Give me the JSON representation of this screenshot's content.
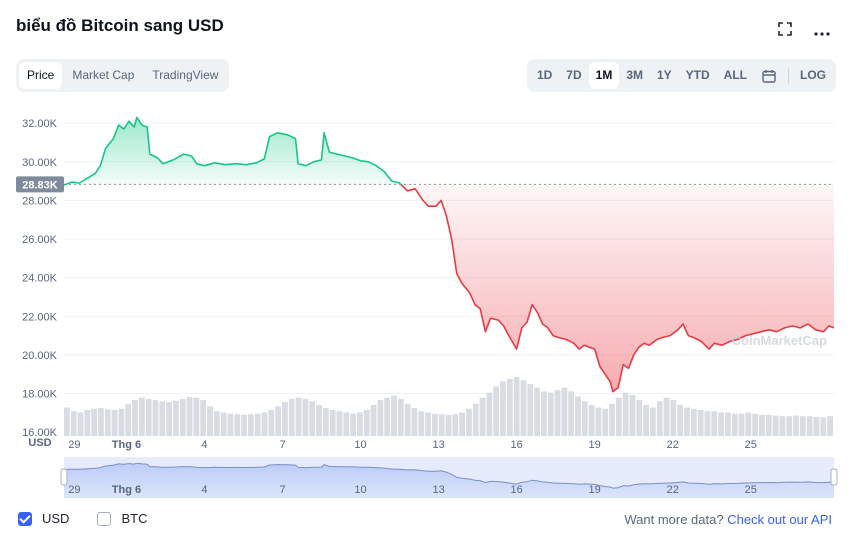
{
  "title": "biểu đồ Bitcoin sang USD",
  "icons": {
    "fullscreen": "fullscreen-icon",
    "more": "more-icon",
    "calendar": "calendar-icon"
  },
  "tabs": [
    {
      "label": "Price",
      "active": true
    },
    {
      "label": "Market Cap",
      "active": false
    },
    {
      "label": "TradingView",
      "active": false
    }
  ],
  "ranges": [
    {
      "label": "1D",
      "active": false
    },
    {
      "label": "7D",
      "active": false
    },
    {
      "label": "1M",
      "active": true
    },
    {
      "label": "3M",
      "active": false
    },
    {
      "label": "1Y",
      "active": false
    },
    {
      "label": "YTD",
      "active": false
    },
    {
      "label": "ALL",
      "active": false
    }
  ],
  "log_label": "LOG",
  "watermark": "CoinMarketCap",
  "currency_label": "USD",
  "legend": [
    {
      "label": "USD",
      "checked": true
    },
    {
      "label": "BTC",
      "checked": false
    }
  ],
  "api_text": "Want more data?",
  "api_link": "Check out our API",
  "colors": {
    "up": "#16c784",
    "down": "#ea3943",
    "accent": "#3861fb",
    "grid": "#eff2f5"
  },
  "chart_data": {
    "type": "area",
    "title": "",
    "xlabel": "",
    "ylabel": "",
    "ylim": [
      15800,
      33200
    ],
    "grid": true,
    "y_ticks": [
      "16.00K",
      "18.00K",
      "20.00K",
      "22.00K",
      "24.00K",
      "26.00K",
      "28.00K",
      "30.00K",
      "32.00K"
    ],
    "y_tick_values": [
      16000,
      18000,
      20000,
      22000,
      24000,
      26000,
      28000,
      30000,
      32000
    ],
    "reference_value": 28830,
    "reference_label": "28.83K",
    "x_ticks": [
      {
        "label": "29",
        "day": 0.4
      },
      {
        "label": "Thg 6",
        "day": 2.4
      },
      {
        "label": "4",
        "day": 5.4
      },
      {
        "label": "7",
        "day": 8.4
      },
      {
        "label": "10",
        "day": 11.4
      },
      {
        "label": "13",
        "day": 14.4
      },
      {
        "label": "16",
        "day": 17.4
      },
      {
        "label": "19",
        "day": 20.4
      },
      {
        "label": "22",
        "day": 23.4
      },
      {
        "label": "25",
        "day": 26.4
      }
    ],
    "series": [
      {
        "values": [
          [
            0.0,
            28800
          ],
          [
            0.3,
            28950
          ],
          [
            0.6,
            28900
          ],
          [
            0.9,
            29150
          ],
          [
            1.2,
            29400
          ],
          [
            1.4,
            29800
          ],
          [
            1.6,
            30700
          ],
          [
            1.9,
            31200
          ],
          [
            2.1,
            31900
          ],
          [
            2.3,
            31700
          ],
          [
            2.5,
            32100
          ],
          [
            2.7,
            31800
          ],
          [
            2.8,
            32300
          ],
          [
            3.0,
            31900
          ],
          [
            3.2,
            31800
          ],
          [
            3.3,
            30400
          ],
          [
            3.6,
            30200
          ],
          [
            3.8,
            29900
          ],
          [
            4.2,
            30100
          ],
          [
            4.6,
            30400
          ],
          [
            4.9,
            30300
          ],
          [
            5.1,
            29900
          ],
          [
            5.4,
            29800
          ],
          [
            5.8,
            29950
          ],
          [
            6.2,
            29850
          ],
          [
            6.6,
            29900
          ],
          [
            7.0,
            29850
          ],
          [
            7.4,
            29950
          ],
          [
            7.7,
            30150
          ],
          [
            7.9,
            31300
          ],
          [
            8.2,
            31500
          ],
          [
            8.6,
            31400
          ],
          [
            8.9,
            31200
          ],
          [
            9.0,
            29900
          ],
          [
            9.3,
            29800
          ],
          [
            9.6,
            30000
          ],
          [
            9.9,
            30100
          ],
          [
            10.0,
            31500
          ],
          [
            10.2,
            30500
          ],
          [
            10.5,
            30400
          ],
          [
            10.8,
            30300
          ],
          [
            11.1,
            30200
          ],
          [
            11.4,
            30050
          ],
          [
            11.7,
            30000
          ],
          [
            12.0,
            29800
          ],
          [
            12.3,
            29500
          ],
          [
            12.6,
            29000
          ],
          [
            12.9,
            28900
          ],
          [
            13.2,
            28500
          ],
          [
            13.5,
            28600
          ],
          [
            13.8,
            28000
          ],
          [
            14.0,
            27700
          ],
          [
            14.3,
            27700
          ],
          [
            14.5,
            28000
          ],
          [
            14.7,
            27200
          ],
          [
            14.9,
            26000
          ],
          [
            15.1,
            24200
          ],
          [
            15.3,
            23700
          ],
          [
            15.6,
            23200
          ],
          [
            15.8,
            22600
          ],
          [
            16.0,
            22400
          ],
          [
            16.2,
            21200
          ],
          [
            16.4,
            21900
          ],
          [
            16.7,
            21800
          ],
          [
            16.9,
            21500
          ],
          [
            17.1,
            21000
          ],
          [
            17.4,
            20300
          ],
          [
            17.6,
            21400
          ],
          [
            17.8,
            21700
          ],
          [
            18.0,
            22600
          ],
          [
            18.2,
            22200
          ],
          [
            18.4,
            21600
          ],
          [
            18.6,
            21400
          ],
          [
            18.8,
            21000
          ],
          [
            19.0,
            20900
          ],
          [
            19.3,
            20800
          ],
          [
            19.6,
            20600
          ],
          [
            19.8,
            20300
          ],
          [
            20.0,
            20500
          ],
          [
            20.2,
            20400
          ],
          [
            20.4,
            20300
          ],
          [
            20.6,
            19400
          ],
          [
            20.8,
            19000
          ],
          [
            21.0,
            18600
          ],
          [
            21.1,
            18100
          ],
          [
            21.3,
            18300
          ],
          [
            21.5,
            19500
          ],
          [
            21.7,
            19300
          ],
          [
            21.9,
            20000
          ],
          [
            22.1,
            20400
          ],
          [
            22.3,
            20600
          ],
          [
            22.5,
            20500
          ],
          [
            22.8,
            20800
          ],
          [
            23.0,
            20900
          ],
          [
            23.3,
            21000
          ],
          [
            23.6,
            21300
          ],
          [
            23.8,
            21600
          ],
          [
            24.0,
            21000
          ],
          [
            24.2,
            20900
          ],
          [
            24.5,
            20700
          ],
          [
            24.8,
            20300
          ],
          [
            25.0,
            20600
          ],
          [
            25.3,
            20500
          ],
          [
            25.6,
            20700
          ],
          [
            25.9,
            20800
          ],
          [
            26.2,
            21000
          ],
          [
            26.5,
            21100
          ],
          [
            26.8,
            21200
          ],
          [
            27.1,
            21300
          ],
          [
            27.4,
            21200
          ],
          [
            27.7,
            21400
          ],
          [
            28.0,
            21500
          ],
          [
            28.3,
            21400
          ],
          [
            28.6,
            21600
          ],
          [
            28.9,
            21300
          ],
          [
            29.2,
            21200
          ],
          [
            29.4,
            21500
          ],
          [
            29.6,
            21400
          ]
        ]
      }
    ],
    "volume": [
      0.46,
      0.4,
      0.38,
      0.42,
      0.44,
      0.45,
      0.43,
      0.42,
      0.44,
      0.52,
      0.58,
      0.62,
      0.6,
      0.58,
      0.56,
      0.55,
      0.57,
      0.6,
      0.63,
      0.62,
      0.58,
      0.48,
      0.4,
      0.38,
      0.36,
      0.35,
      0.34,
      0.35,
      0.36,
      0.38,
      0.42,
      0.48,
      0.55,
      0.6,
      0.62,
      0.6,
      0.56,
      0.5,
      0.45,
      0.42,
      0.4,
      0.38,
      0.36,
      0.38,
      0.42,
      0.5,
      0.58,
      0.62,
      0.65,
      0.6,
      0.52,
      0.45,
      0.4,
      0.38,
      0.36,
      0.35,
      0.34,
      0.35,
      0.38,
      0.44,
      0.52,
      0.62,
      0.7,
      0.8,
      0.88,
      0.92,
      0.95,
      0.9,
      0.84,
      0.78,
      0.72,
      0.7,
      0.74,
      0.78,
      0.72,
      0.64,
      0.56,
      0.5,
      0.46,
      0.44,
      0.52,
      0.62,
      0.7,
      0.66,
      0.58,
      0.5,
      0.46,
      0.56,
      0.62,
      0.58,
      0.5,
      0.46,
      0.44,
      0.42,
      0.4,
      0.4,
      0.38,
      0.38,
      0.36,
      0.36,
      0.38,
      0.36,
      0.34,
      0.34,
      0.33,
      0.32,
      0.32,
      0.33,
      0.32,
      0.32,
      0.31,
      0.3,
      0.32
    ]
  }
}
